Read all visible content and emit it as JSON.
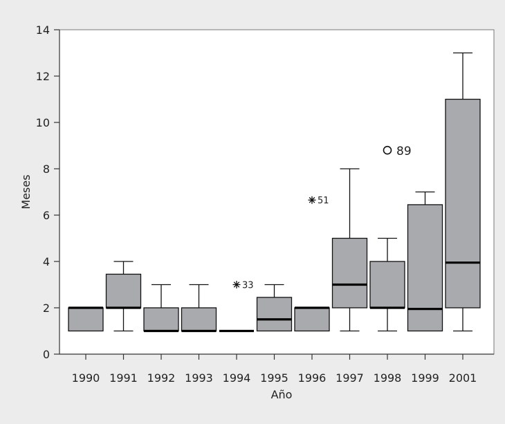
{
  "chart_data": {
    "type": "boxplot",
    "title": "",
    "xlabel": "Año",
    "ylabel": "Meses",
    "ylim": [
      0,
      14
    ],
    "yticks": [
      0,
      2,
      4,
      6,
      8,
      10,
      12,
      14
    ],
    "categories": [
      "1990",
      "1991",
      "1992",
      "1993",
      "1994",
      "1995",
      "1996",
      "1997",
      "1998",
      "1999",
      "2001"
    ],
    "boxes": [
      {
        "category": "1990",
        "q1": 1,
        "median": 2,
        "q3": 2,
        "whisker_low": 1,
        "whisker_high": 2
      },
      {
        "category": "1991",
        "q1": 2,
        "median": 2,
        "q3": 3.45,
        "whisker_low": 1,
        "whisker_high": 4
      },
      {
        "category": "1992",
        "q1": 1,
        "median": 1,
        "q3": 2,
        "whisker_low": 1,
        "whisker_high": 3
      },
      {
        "category": "1993",
        "q1": 1,
        "median": 1,
        "q3": 2,
        "whisker_low": 1,
        "whisker_high": 3
      },
      {
        "category": "1994",
        "q1": 1,
        "median": 1,
        "q3": 1,
        "whisker_low": 1,
        "whisker_high": 1
      },
      {
        "category": "1995",
        "q1": 1,
        "median": 1.5,
        "q3": 2.45,
        "whisker_low": 1,
        "whisker_high": 3
      },
      {
        "category": "1996",
        "q1": 1,
        "median": 2,
        "q3": 2,
        "whisker_low": 1,
        "whisker_high": 2
      },
      {
        "category": "1997",
        "q1": 2,
        "median": 3,
        "q3": 5,
        "whisker_low": 1,
        "whisker_high": 8
      },
      {
        "category": "1998",
        "q1": 2,
        "median": 2,
        "q3": 4,
        "whisker_low": 1,
        "whisker_high": 5
      },
      {
        "category": "1999",
        "q1": 1,
        "median": 1.95,
        "q3": 6.45,
        "whisker_low": 1,
        "whisker_high": 7
      },
      {
        "category": "2001",
        "q1": 2,
        "median": 3.95,
        "q3": 11,
        "whisker_low": 1,
        "whisker_high": 13
      }
    ],
    "outliers": [
      {
        "category": "1994",
        "value": 3,
        "label": "33",
        "marker": "star"
      },
      {
        "category": "1996",
        "value": 6.65,
        "label": "51",
        "marker": "star"
      },
      {
        "category": "1998",
        "value": 8.8,
        "label": "89",
        "marker": "circle"
      }
    ],
    "grid": false,
    "legend": "none"
  }
}
